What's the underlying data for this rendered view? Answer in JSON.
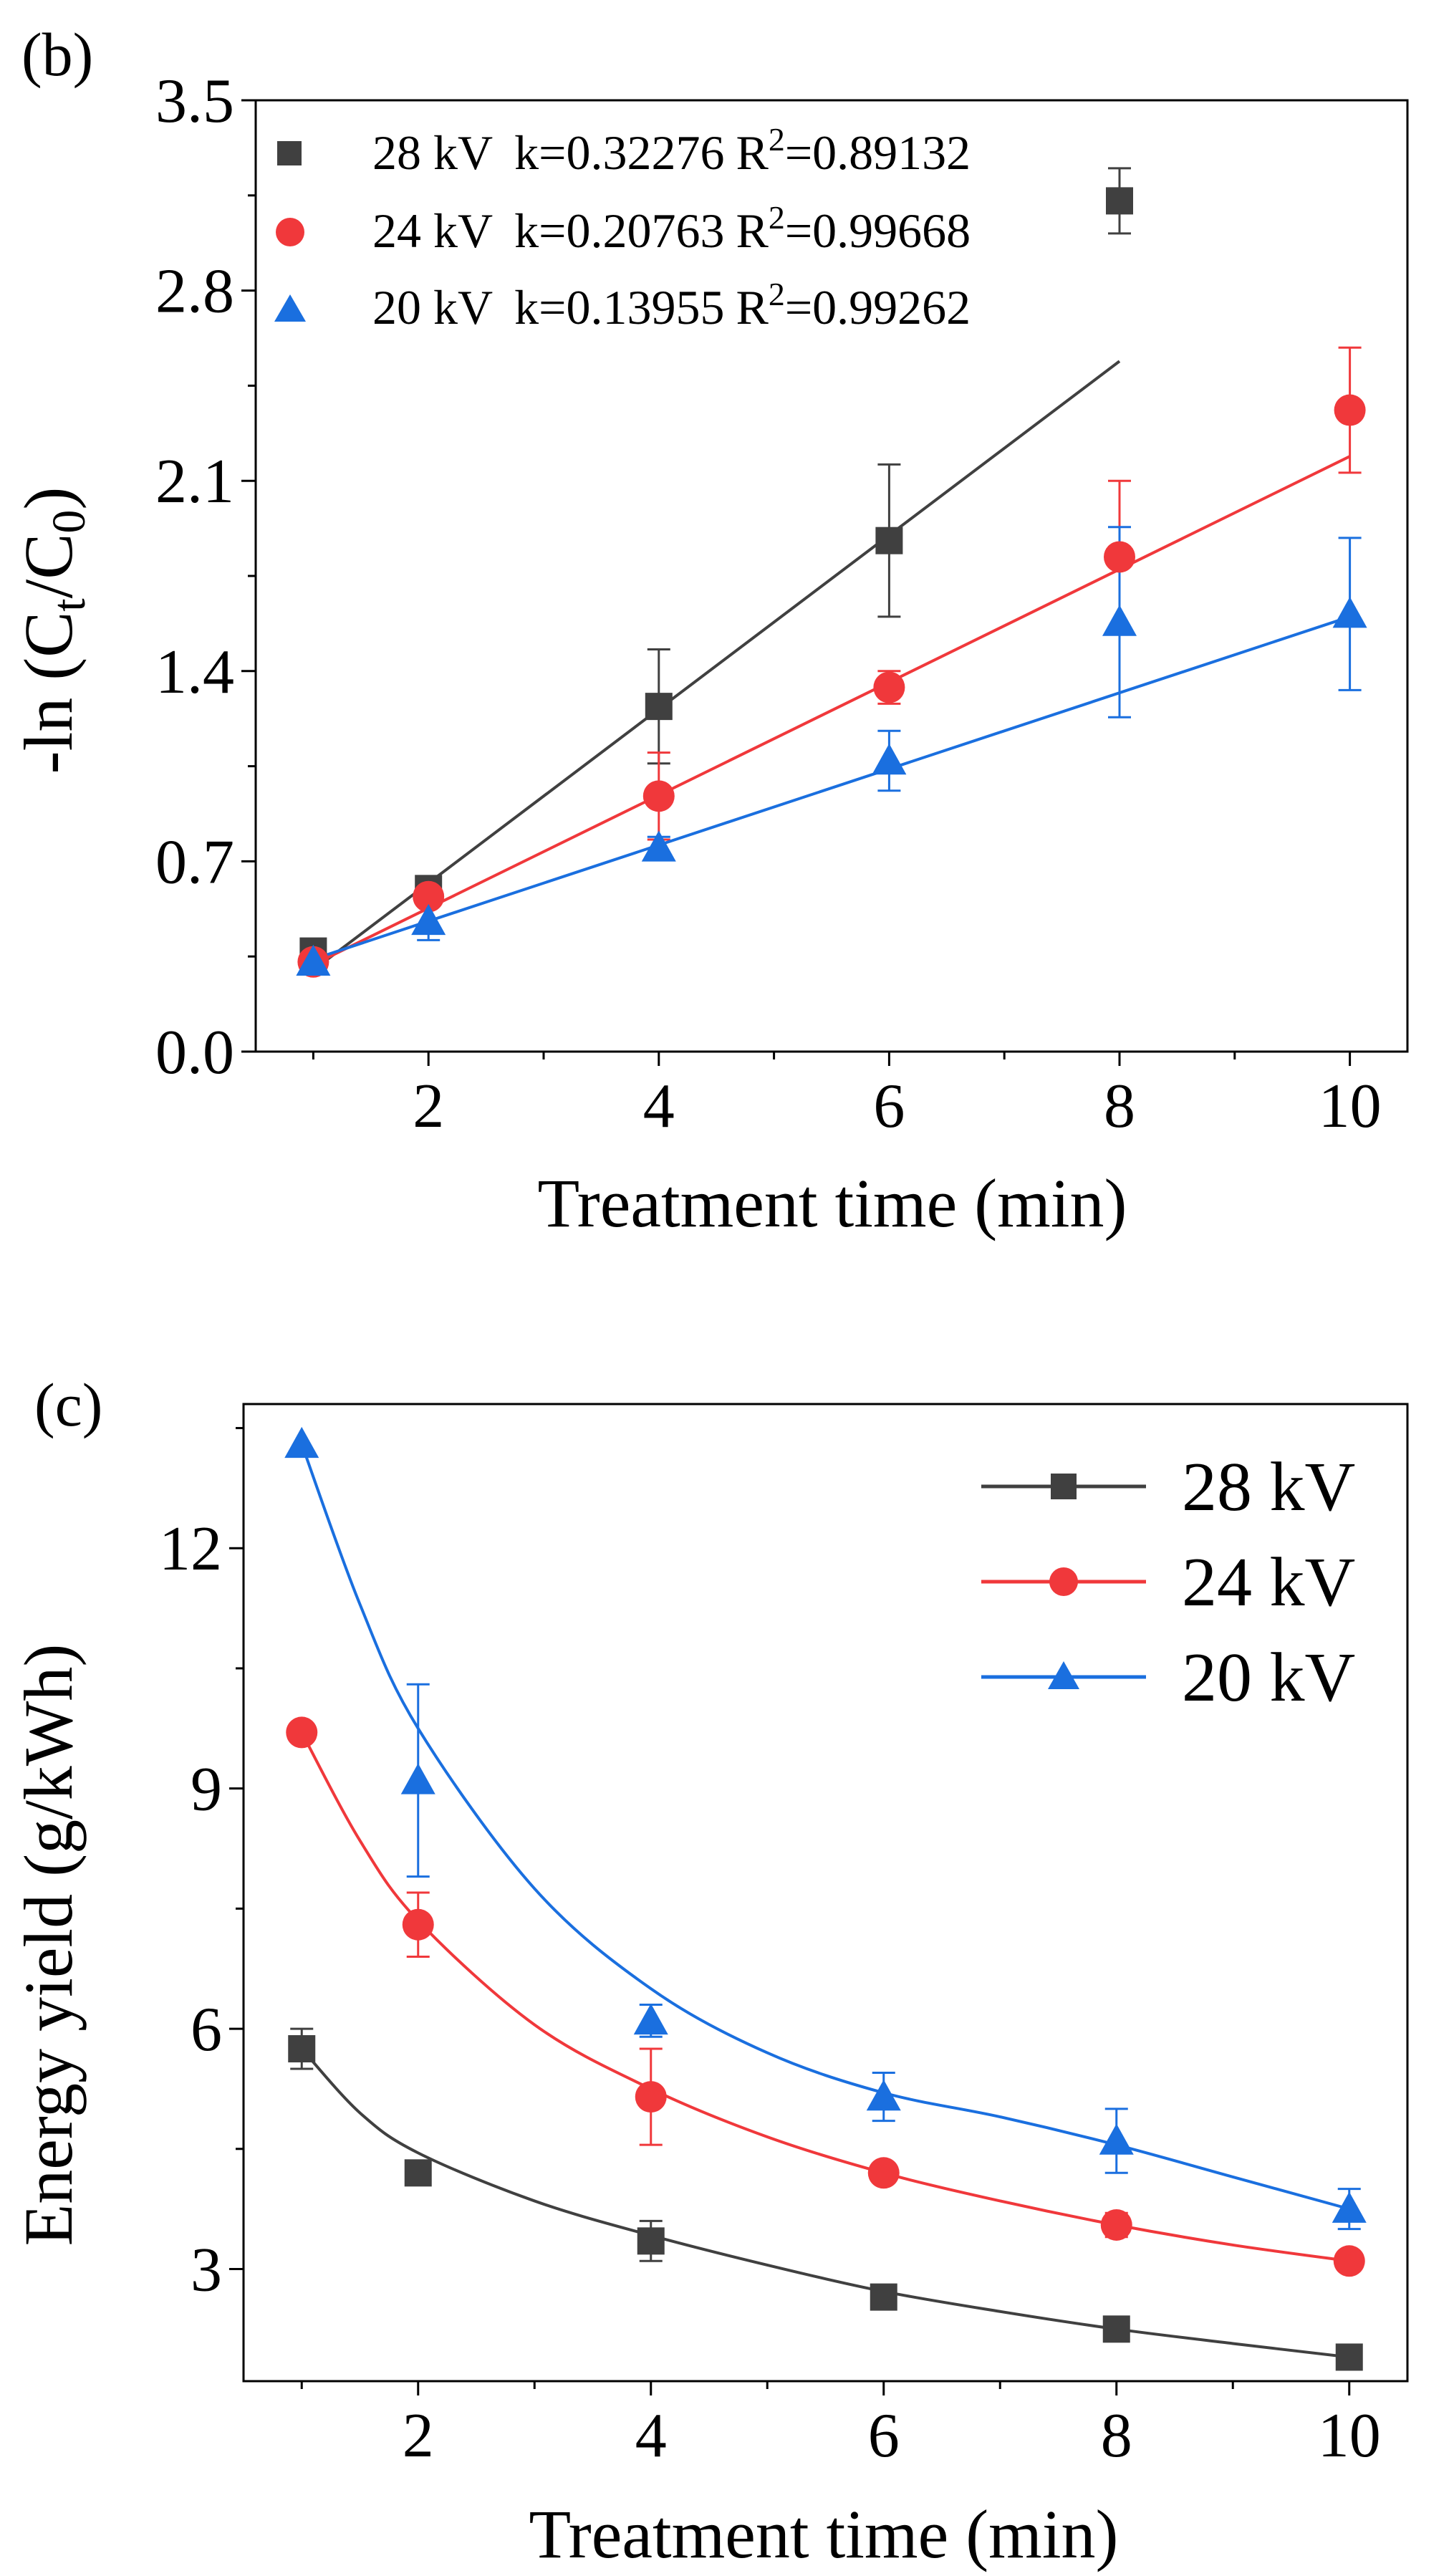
{
  "chart_data": [
    {
      "panel_label": "(b)",
      "type": "scatter",
      "xlabel": "Treatment time (min)",
      "ylabel": {
        "prefix": "-ln (C",
        "sub1": "t",
        "mid": "/C",
        "sub2": "0",
        "suffix": ")"
      },
      "xlim": [
        0.5,
        10.5
      ],
      "ylim": [
        0,
        3.5
      ],
      "xticks": [
        2,
        4,
        6,
        8,
        10
      ],
      "xticks_minor": [
        1,
        3,
        5,
        7,
        9
      ],
      "yticks": [
        0.0,
        0.7,
        1.4,
        2.1,
        2.8,
        3.5
      ],
      "yticks_minor": [
        0.35,
        1.05,
        1.75,
        2.45,
        3.15
      ],
      "grid": false,
      "legend_position": "top-left",
      "series": [
        {
          "name": "28 kV",
          "legend_text": {
            "label": "28 kV",
            "k": "k=0.32276",
            "r2_prefix": "R",
            "r2_sup": "2",
            "r2_value": "=0.89132"
          },
          "color": "#404040",
          "marker": "square",
          "x": [
            1,
            2,
            4,
            6,
            8
          ],
          "y": [
            0.37,
            0.6,
            1.27,
            1.88,
            3.13
          ],
          "err": [
            0.03,
            0.03,
            0.21,
            0.28,
            0.12
          ],
          "fit": {
            "x0": 1,
            "y0": 0.3,
            "x1": 8,
            "y1": 2.54
          }
        },
        {
          "name": "24 kV",
          "legend_text": {
            "label": "24 kV",
            "k": "k=0.20763",
            "r2_prefix": "R",
            "r2_sup": "2",
            "r2_value": "=0.99668"
          },
          "color": "#f0383b",
          "marker": "circle",
          "x": [
            1,
            2,
            4,
            6,
            8,
            10
          ],
          "y": [
            0.33,
            0.57,
            0.94,
            1.34,
            1.82,
            2.36
          ],
          "err": [
            0.02,
            0.03,
            0.16,
            0.06,
            0.28,
            0.23
          ],
          "fit": {
            "x0": 1,
            "y0": 0.32,
            "x1": 10,
            "y1": 2.19
          }
        },
        {
          "name": "20 kV",
          "legend_text": {
            "label": "20 kV",
            "k": "k=0.13955",
            "r2_prefix": "R",
            "r2_sup": "2",
            "r2_value": "=0.99262"
          },
          "color": "#1a6fdf",
          "marker": "triangle",
          "x": [
            1,
            2,
            4,
            6,
            8,
            10
          ],
          "y": [
            0.33,
            0.48,
            0.75,
            1.07,
            1.58,
            1.61
          ],
          "err": [
            0.02,
            0.07,
            0.04,
            0.11,
            0.35,
            0.28
          ],
          "fit": {
            "x0": 1,
            "y0": 0.34,
            "x1": 10,
            "y1": 1.6
          }
        }
      ]
    },
    {
      "panel_label": "(c)",
      "type": "line",
      "xlabel": "Treatment time (min)",
      "ylabel": "Energy yield (g/kWh)",
      "xlim": [
        0.5,
        10.5
      ],
      "ylim": [
        1.6,
        13.8
      ],
      "xticks": [
        2,
        4,
        6,
        8,
        10
      ],
      "xticks_minor": [
        1,
        3,
        5,
        7,
        9
      ],
      "yticks": [
        3,
        6,
        9,
        12
      ],
      "yticks_minor": [
        4.5,
        7.5,
        10.5,
        13.5
      ],
      "grid": false,
      "legend_position": "top-right",
      "series": [
        {
          "name": "28 kV",
          "color": "#404040",
          "marker": "square",
          "x": [
            1,
            2,
            4,
            6,
            8,
            10
          ],
          "y": [
            5.75,
            4.2,
            3.35,
            2.65,
            2.25,
            1.9
          ],
          "err": [
            0.25,
            0,
            0.25,
            0,
            0,
            0
          ],
          "fit_curve": [
            [
              1,
              5.75
            ],
            [
              1.5,
              4.95
            ],
            [
              2,
              4.45
            ],
            [
              3,
              3.85
            ],
            [
              4,
              3.42
            ],
            [
              5,
              3.05
            ],
            [
              6,
              2.72
            ],
            [
              7,
              2.47
            ],
            [
              8,
              2.25
            ],
            [
              9,
              2.07
            ],
            [
              10,
              1.9
            ]
          ]
        },
        {
          "name": "24 kV",
          "color": "#f0383b",
          "marker": "circle",
          "x": [
            1,
            2,
            4,
            6,
            8,
            10
          ],
          "y": [
            9.7,
            7.3,
            5.15,
            4.2,
            3.55,
            3.1
          ],
          "err": [
            0,
            0.4,
            0.6,
            0,
            0.15,
            0
          ],
          "fit_curve": [
            [
              1,
              9.7
            ],
            [
              1.5,
              8.35
            ],
            [
              2,
              7.35
            ],
            [
              3,
              6.05
            ],
            [
              4,
              5.25
            ],
            [
              5,
              4.65
            ],
            [
              6,
              4.2
            ],
            [
              7,
              3.85
            ],
            [
              8,
              3.55
            ],
            [
              9,
              3.3
            ],
            [
              10,
              3.1
            ]
          ]
        },
        {
          "name": "20 kV",
          "color": "#1a6fdf",
          "marker": "triangle",
          "x": [
            1,
            2,
            4,
            6,
            8,
            10
          ],
          "y": [
            13.3,
            9.1,
            6.1,
            5.15,
            4.6,
            3.75
          ],
          "err": [
            0,
            1.2,
            0.2,
            0.3,
            0.4,
            0.25
          ],
          "fit_curve": [
            [
              1,
              13.3
            ],
            [
              1.5,
              11.3
            ],
            [
              2,
              9.75
            ],
            [
              3,
              7.75
            ],
            [
              4,
              6.5
            ],
            [
              5,
              5.7
            ],
            [
              6,
              5.2
            ],
            [
              7,
              4.9
            ],
            [
              8,
              4.55
            ],
            [
              9,
              4.15
            ],
            [
              10,
              3.75
            ]
          ]
        }
      ]
    }
  ]
}
